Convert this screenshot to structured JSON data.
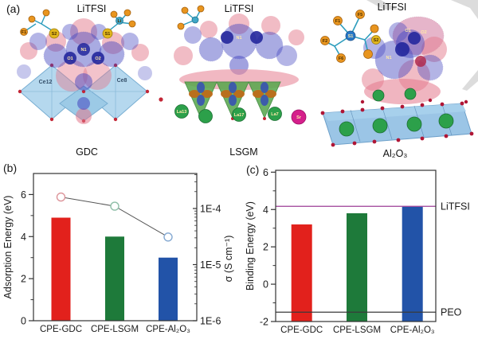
{
  "figure": {
    "panel_a_label": "(a)",
    "panel_b_label": "(b)",
    "panel_c_label": "(c)"
  },
  "panel_a": {
    "structures": [
      {
        "top_label": "LiTFSI",
        "bottom_label": "GDC",
        "atom_labels": {
          "f1": "F1",
          "s2": "S2",
          "s1": "S1",
          "n1": "N1",
          "li": "Li",
          "o1": "O1",
          "o2": "O2",
          "ce12": "Ce12",
          "ce8": "Ce8"
        }
      },
      {
        "top_label": "LiTFSI",
        "bottom_label": "LSGM",
        "atom_labels": {
          "n1": "N1",
          "la13": "La13",
          "la17": "La17",
          "la7": "La7",
          "sr": "Sr"
        }
      },
      {
        "top_label": "LiTFSI",
        "bottom_label": "Al₂O₃",
        "atom_labels": {
          "f1": "F1",
          "f5": "F5",
          "f2": "F2",
          "f6": "F6",
          "s1": "S1",
          "s2": "S2",
          "n1": "N1",
          "o1": "O1",
          "o2": "O2"
        }
      }
    ]
  },
  "chart_data": [
    {
      "id": "b",
      "type": "bar",
      "panel_label": "(b)",
      "categories": [
        "CPE-GDC",
        "CPE-LSGM",
        "CPE-Al₂O₃"
      ],
      "bars": {
        "name": "Adsorption Energy",
        "values": [
          4.9,
          4.0,
          3.0
        ],
        "colors": [
          "#e2211c",
          "#1e7a3a",
          "#2253a8"
        ]
      },
      "ylabel_left": "Adsorption Energy (eV)",
      "ylim_left": [
        0,
        7
      ],
      "yticks_left": [
        0,
        2,
        4,
        6
      ],
      "minor_ticks_left": [
        1,
        3,
        5
      ],
      "line_series": {
        "name": "sigma",
        "sigma_values": [
          0.00016,
          0.00011,
          3.1e-05
        ],
        "marker_colors": [
          "#dc9298",
          "#8fbfa8",
          "#85a9d2"
        ],
        "line_color": "#555555"
      },
      "ylabel_right": "σ (S cm⁻¹)",
      "yticks_right": [
        {
          "label": "1E-4",
          "exp": -4
        },
        {
          "label": "1E-5",
          "exp": -5
        },
        {
          "label": "1E-6",
          "exp": -6
        }
      ],
      "right_log_range": [
        -6,
        -3.376
      ],
      "legend": "none",
      "grid": false
    },
    {
      "id": "c",
      "type": "bar",
      "panel_label": "(c)",
      "categories": [
        "CPE-GDC",
        "CPE-LSGM",
        "CPE-Al₂O₃"
      ],
      "bars": {
        "name": "Binding Energy",
        "values": [
          3.2,
          3.8,
          4.15
        ],
        "base": -2,
        "colors": [
          "#e2211c",
          "#1e7a3a",
          "#2253a8"
        ]
      },
      "ylabel": "Binding Energy (eV)",
      "ylim": [
        -2,
        6.1
      ],
      "yticks": [
        -2,
        0,
        2,
        4,
        6
      ],
      "minor_ticks": [
        -1,
        1,
        3,
        5
      ],
      "reference_lines": [
        {
          "label": "LiTFSI",
          "value": 4.17,
          "color": "#9b3d96"
        },
        {
          "label": "PEO",
          "value": -1.5,
          "color": "#3a3a3a"
        }
      ],
      "legend": "none",
      "grid": false
    }
  ],
  "colors": {
    "bar_red": "#e2211c",
    "bar_green": "#1e7a3a",
    "bar_blue": "#2253a8",
    "litfsi_line": "#9b3d96",
    "peo_line": "#3a3a3a",
    "axis": "#333333",
    "watermark": "#dcdcdc"
  }
}
